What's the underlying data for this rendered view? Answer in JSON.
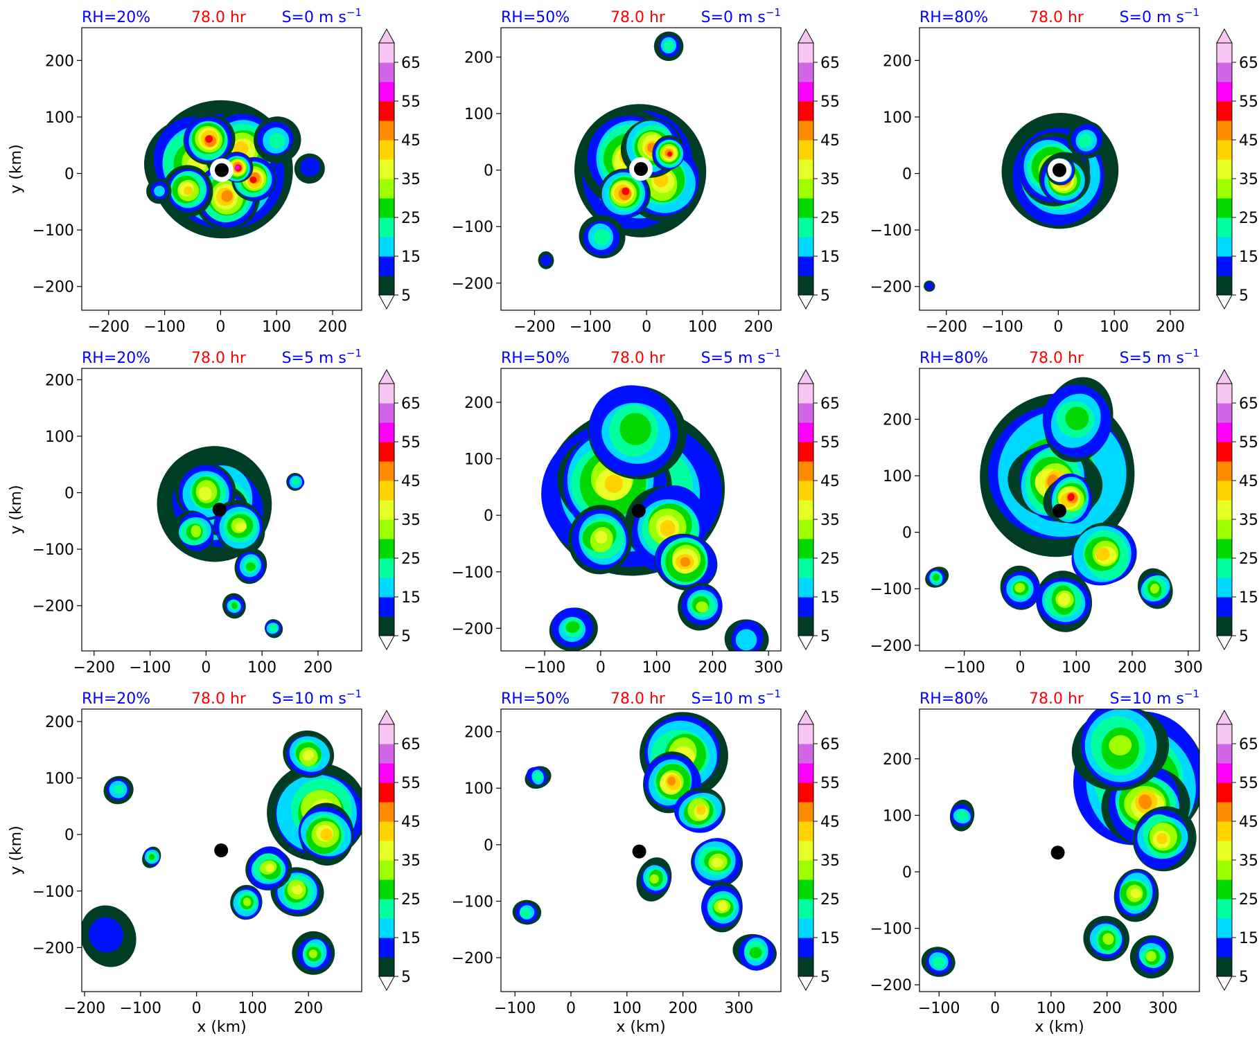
{
  "figure": {
    "colormap": [
      "#003d24",
      "#0011ff",
      "#00d9ff",
      "#00ff9d",
      "#00d800",
      "#9dff00",
      "#e6ff26",
      "#ffd200",
      "#ff8c00",
      "#ff0000",
      "#ff00ff",
      "#d166e6",
      "#f7c6f2"
    ],
    "colorbar_ticks": [
      "5",
      "15",
      "25",
      "35",
      "45",
      "55",
      "65"
    ],
    "eye_color": "#000000"
  },
  "chart_data": [
    {
      "type": "heatmap",
      "rh_label": "RH=20%",
      "time_label": "78.0 hr",
      "shear_label": "S=0 m s",
      "shear_exp": "−1",
      "ylabel": "y (km)",
      "xlabel": "",
      "xticks": [
        "−200",
        "−100",
        "0",
        "100",
        "200"
      ],
      "yticks": [
        "200",
        "100",
        "0",
        "−100",
        "−200"
      ],
      "xlim": [
        -248,
        252
      ],
      "ylim": [
        -242,
        258
      ],
      "center": [
        2,
        6
      ],
      "shape": "compact",
      "field": [
        {
          "x": 0,
          "y": 0,
          "value": 32,
          "size": 125
        },
        {
          "x": -45,
          "y": 20,
          "value": 38,
          "size": 85
        },
        {
          "x": 40,
          "y": 40,
          "value": 42,
          "size": 70
        },
        {
          "x": 10,
          "y": -40,
          "value": 45,
          "size": 60
        },
        {
          "x": -20,
          "y": 60,
          "value": 50,
          "size": 45
        },
        {
          "x": 60,
          "y": -10,
          "value": 52,
          "size": 40
        },
        {
          "x": 30,
          "y": 10,
          "value": 55,
          "size": 28
        },
        {
          "x": -60,
          "y": -30,
          "value": 40,
          "size": 45
        },
        {
          "x": 100,
          "y": 60,
          "value": 20,
          "size": 40
        },
        {
          "x": 160,
          "y": 10,
          "value": 10,
          "size": 28
        },
        {
          "x": -110,
          "y": -30,
          "value": 18,
          "size": 22
        }
      ]
    },
    {
      "type": "heatmap",
      "rh_label": "RH=50%",
      "time_label": "78.0 hr",
      "shear_label": "S=0 m s",
      "shear_exp": "−1",
      "ylabel": "",
      "xlabel": "",
      "xticks": [
        "−200",
        "−100",
        "0",
        "100",
        "200"
      ],
      "yticks": [
        "200",
        "100",
        "0",
        "−100",
        "−200"
      ],
      "xlim": [
        -260,
        240
      ],
      "ylim": [
        -248,
        252
      ],
      "center": [
        -10,
        2
      ],
      "shape": "compact",
      "field": [
        {
          "x": -10,
          "y": 0,
          "value": 30,
          "size": 120
        },
        {
          "x": -30,
          "y": 20,
          "value": 40,
          "size": 85
        },
        {
          "x": 30,
          "y": -20,
          "value": 42,
          "size": 70
        },
        {
          "x": 10,
          "y": 40,
          "value": 48,
          "size": 55
        },
        {
          "x": -40,
          "y": -40,
          "value": 50,
          "size": 45
        },
        {
          "x": 40,
          "y": 30,
          "value": 53,
          "size": 30
        },
        {
          "x": -80,
          "y": -120,
          "value": 22,
          "size": 40
        },
        {
          "x": 40,
          "y": 220,
          "value": 20,
          "size": 25
        },
        {
          "x": -180,
          "y": -160,
          "value": 14,
          "size": 15
        }
      ]
    },
    {
      "type": "heatmap",
      "rh_label": "RH=80%",
      "time_label": "78.0 hr",
      "shear_label": "S=0 m s",
      "shear_exp": "−1",
      "ylabel": "",
      "xlabel": "",
      "xticks": [
        "−200",
        "−100",
        "0",
        "100",
        "200"
      ],
      "yticks": [
        "200",
        "100",
        "0",
        "−100",
        "−200"
      ],
      "xlim": [
        -248,
        252
      ],
      "ylim": [
        -242,
        258
      ],
      "center": [
        2,
        6
      ],
      "shape": "compact",
      "field": [
        {
          "x": 0,
          "y": 0,
          "value": 35,
          "size": 100
        },
        {
          "x": -10,
          "y": 10,
          "value": 44,
          "size": 65
        },
        {
          "x": 10,
          "y": -10,
          "value": 50,
          "size": 45
        },
        {
          "x": 5,
          "y": 5,
          "value": 56,
          "size": 25
        },
        {
          "x": 50,
          "y": 60,
          "value": 20,
          "size": 35
        },
        {
          "x": -230,
          "y": -200,
          "value": 12,
          "size": 10
        }
      ]
    },
    {
      "type": "heatmap",
      "rh_label": "RH=20%",
      "time_label": "78.0 hr",
      "shear_label": "S=5 m s",
      "shear_exp": "−1",
      "ylabel": "y (km)",
      "xlabel": "",
      "xticks": [
        "−200",
        "−100",
        "0",
        "100",
        "200"
      ],
      "yticks": [
        "200",
        "100",
        "0",
        "−100",
        "−200"
      ],
      "xlim": [
        -222,
        278
      ],
      "ylim": [
        -280,
        220
      ],
      "center": [
        24,
        -30
      ],
      "shape": "spread",
      "field": [
        {
          "x": 20,
          "y": -20,
          "value": 32,
          "size": 95
        },
        {
          "x": 30,
          "y": -30,
          "value": 45,
          "size": 40
        },
        {
          "x": 0,
          "y": 0,
          "value": 38,
          "size": 55
        },
        {
          "x": 60,
          "y": -60,
          "value": 35,
          "size": 45
        },
        {
          "x": -20,
          "y": -70,
          "value": 30,
          "size": 40
        },
        {
          "x": 80,
          "y": -130,
          "value": 28,
          "size": 30
        },
        {
          "x": 50,
          "y": -200,
          "value": 25,
          "size": 20
        },
        {
          "x": 120,
          "y": -240,
          "value": 22,
          "size": 18
        },
        {
          "x": 160,
          "y": 20,
          "value": 22,
          "size": 18
        }
      ]
    },
    {
      "type": "heatmap",
      "rh_label": "RH=50%",
      "time_label": "78.0 hr",
      "shear_label": "S=5 m s",
      "shear_exp": "−1",
      "ylabel": "",
      "xlabel": "",
      "xticks": [
        "−100",
        "0",
        "100",
        "200",
        "300"
      ],
      "yticks": [
        "200",
        "100",
        "0",
        "−100",
        "−200"
      ],
      "xlim": [
        -178,
        322
      ],
      "ylim": [
        -240,
        260
      ],
      "center": [
        68,
        8
      ],
      "shape": "spread",
      "field": [
        {
          "x": 60,
          "y": 40,
          "value": 32,
          "size": 170
        },
        {
          "x": 20,
          "y": 60,
          "value": 40,
          "size": 100
        },
        {
          "x": 120,
          "y": -20,
          "value": 42,
          "size": 80
        },
        {
          "x": 150,
          "y": -80,
          "value": 48,
          "size": 55
        },
        {
          "x": 0,
          "y": -40,
          "value": 38,
          "size": 60
        },
        {
          "x": 60,
          "y": 150,
          "value": 25,
          "size": 90
        },
        {
          "x": 180,
          "y": -160,
          "value": 30,
          "size": 40
        },
        {
          "x": -50,
          "y": -200,
          "value": 28,
          "size": 40
        },
        {
          "x": 260,
          "y": -220,
          "value": 18,
          "size": 40
        }
      ]
    },
    {
      "type": "heatmap",
      "rh_label": "RH=80%",
      "time_label": "78.0 hr",
      "shear_label": "S=5 m s",
      "shear_exp": "−1",
      "ylabel": "",
      "xlabel": "",
      "xticks": [
        "−100",
        "0",
        "100",
        "200",
        "300"
      ],
      "yticks": [
        "200",
        "100",
        "0",
        "−100",
        "−200"
      ],
      "xlim": [
        -180,
        320
      ],
      "ylim": [
        -210,
        290
      ],
      "center": [
        70,
        38
      ],
      "shape": "spread",
      "field": [
        {
          "x": 70,
          "y": 100,
          "value": 35,
          "size": 140
        },
        {
          "x": 60,
          "y": 90,
          "value": 45,
          "size": 75
        },
        {
          "x": 90,
          "y": 60,
          "value": 50,
          "size": 45
        },
        {
          "x": 100,
          "y": 200,
          "value": 28,
          "size": 70
        },
        {
          "x": 150,
          "y": -40,
          "value": 40,
          "size": 60
        },
        {
          "x": 80,
          "y": -120,
          "value": 35,
          "size": 50
        },
        {
          "x": 0,
          "y": -100,
          "value": 30,
          "size": 35
        },
        {
          "x": 240,
          "y": -100,
          "value": 30,
          "size": 35
        },
        {
          "x": -150,
          "y": -80,
          "value": 25,
          "size": 20
        }
      ]
    },
    {
      "type": "heatmap",
      "rh_label": "RH=20%",
      "time_label": "78.0 hr",
      "shear_label": "S=10 m s",
      "shear_exp": "−1",
      "ylabel": "y (km)",
      "xlabel": "x (km)",
      "xticks": [
        "−200",
        "−100",
        "0",
        "100",
        "200"
      ],
      "yticks": [
        "200",
        "100",
        "0",
        "−100",
        "−200"
      ],
      "xlim": [
        -205,
        295
      ],
      "ylim": [
        -278,
        222
      ],
      "center": [
        44,
        -28
      ],
      "shape": "spread",
      "field": [
        {
          "x": 220,
          "y": 40,
          "value": 35,
          "size": 95
        },
        {
          "x": 230,
          "y": 0,
          "value": 42,
          "size": 55
        },
        {
          "x": 200,
          "y": 140,
          "value": 38,
          "size": 45
        },
        {
          "x": 180,
          "y": -100,
          "value": 35,
          "size": 45
        },
        {
          "x": 130,
          "y": -60,
          "value": 35,
          "size": 40
        },
        {
          "x": 90,
          "y": -120,
          "value": 32,
          "size": 30
        },
        {
          "x": 210,
          "y": -210,
          "value": 30,
          "size": 35
        },
        {
          "x": -160,
          "y": -180,
          "value": 14,
          "size": 55
        },
        {
          "x": -140,
          "y": 80,
          "value": 22,
          "size": 25
        },
        {
          "x": -80,
          "y": -40,
          "value": 25,
          "size": 18
        }
      ]
    },
    {
      "type": "heatmap",
      "rh_label": "RH=50%",
      "time_label": "78.0 hr",
      "shear_label": "S=10 m s",
      "shear_exp": "−1",
      "ylabel": "",
      "xlabel": "x (km)",
      "xticks": [
        "−100",
        "0",
        "100",
        "200",
        "300"
      ],
      "yticks": [
        "200",
        "100",
        "0",
        "−100",
        "−200"
      ],
      "xlim": [
        -125,
        375
      ],
      "ylim": [
        -260,
        240
      ],
      "center": [
        122,
        -12
      ],
      "shape": "spread",
      "field": [
        {
          "x": 200,
          "y": 160,
          "value": 35,
          "size": 85
        },
        {
          "x": 180,
          "y": 110,
          "value": 48,
          "size": 50
        },
        {
          "x": 230,
          "y": 60,
          "value": 40,
          "size": 45
        },
        {
          "x": 260,
          "y": -30,
          "value": 38,
          "size": 45
        },
        {
          "x": 270,
          "y": -110,
          "value": 35,
          "size": 40
        },
        {
          "x": 150,
          "y": -60,
          "value": 32,
          "size": 35
        },
        {
          "x": 330,
          "y": -190,
          "value": 28,
          "size": 35
        },
        {
          "x": -80,
          "y": -120,
          "value": 22,
          "size": 25
        },
        {
          "x": -60,
          "y": 120,
          "value": 22,
          "size": 22
        }
      ]
    },
    {
      "type": "heatmap",
      "rh_label": "RH=80%",
      "time_label": "78.0 hr",
      "shear_label": "S=10 m s",
      "shear_exp": "−1",
      "ylabel": "",
      "xlabel": "x (km)",
      "xticks": [
        "−100",
        "0",
        "100",
        "200",
        "300"
      ],
      "yticks": [
        "200",
        "100",
        "0",
        "−100",
        "−200"
      ],
      "xlim": [
        -135,
        365
      ],
      "ylim": [
        -212,
        288
      ],
      "center": [
        112,
        34
      ],
      "shape": "spread",
      "field": [
        {
          "x": 260,
          "y": 160,
          "value": 35,
          "size": 130
        },
        {
          "x": 270,
          "y": 120,
          "value": 48,
          "size": 70
        },
        {
          "x": 220,
          "y": 220,
          "value": 30,
          "size": 85
        },
        {
          "x": 300,
          "y": 60,
          "value": 40,
          "size": 55
        },
        {
          "x": 250,
          "y": -40,
          "value": 35,
          "size": 45
        },
        {
          "x": 200,
          "y": -120,
          "value": 32,
          "size": 40
        },
        {
          "x": 280,
          "y": -150,
          "value": 30,
          "size": 35
        },
        {
          "x": -100,
          "y": -160,
          "value": 22,
          "size": 30
        },
        {
          "x": -60,
          "y": 100,
          "value": 22,
          "size": 25
        }
      ]
    }
  ]
}
